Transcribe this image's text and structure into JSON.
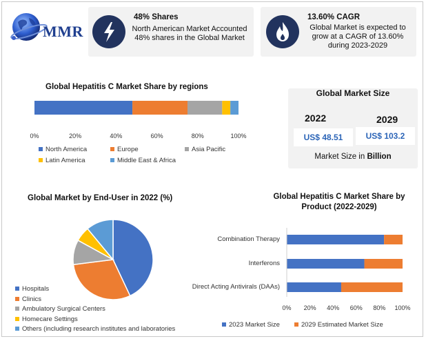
{
  "brand": {
    "name": "MMR"
  },
  "cards": [
    {
      "title": "48% Shares",
      "text": "North American Market Accounted 48% shares in the Global Market",
      "icon": "lightning-icon"
    },
    {
      "title": "13.60% CAGR",
      "text": "Global Market is expected to grow at a CAGR of 13.60% during 2023-2029",
      "icon": "flame-icon"
    }
  ],
  "market_size": {
    "title": "Global Market Size",
    "years": [
      "2022",
      "2029"
    ],
    "values": [
      "US$ 48.51",
      "US$ 103.2"
    ],
    "caption_prefix": "Market Size in ",
    "caption_unit": "Billion"
  },
  "colors": {
    "blue": "#4472c4",
    "orange": "#ed7d31",
    "gray": "#a5a5a5",
    "yellow": "#ffc000",
    "lightblue": "#5b9bd5"
  },
  "chart_data": [
    {
      "type": "bar",
      "orientation": "horizontal-stacked",
      "title": "Global Hepatitis C Market Share by regions",
      "categories": [
        "North America",
        "Europe",
        "Asia Pacific",
        "Latin America",
        "Middle East & Africa"
      ],
      "values": [
        48,
        27,
        17,
        4,
        4
      ],
      "xlim": [
        0,
        100
      ],
      "ticks": [
        "0%",
        "20%",
        "40%",
        "60%",
        "80%",
        "100%"
      ],
      "legend": "bottom"
    },
    {
      "type": "pie",
      "title": "Global Market by End-User in 2022 (%)",
      "categories": [
        "Hospitals",
        "Clinics",
        "Ambulatory Surgical Centers",
        "Homecare Settings",
        "Others (including research institutes and laboratories"
      ],
      "values": [
        43,
        30,
        10,
        6,
        11
      ],
      "legend": "bottom-left"
    },
    {
      "type": "bar",
      "orientation": "horizontal-stacked",
      "title": "Global Hepatitis C Market Share by Product (2022-2029)",
      "categories": [
        "Combination Therapy",
        "Interferons",
        "Direct Acting Antivirals (DAAs)"
      ],
      "series": [
        {
          "name": "2023 Market Size",
          "values": [
            84,
            67,
            47
          ]
        },
        {
          "name": "2029 Estimated Market Size",
          "values": [
            16,
            33,
            53
          ]
        }
      ],
      "xlim": [
        0,
        100
      ],
      "ticks": [
        "0%",
        "20%",
        "40%",
        "60%",
        "80%",
        "100%"
      ],
      "legend": "bottom"
    }
  ]
}
